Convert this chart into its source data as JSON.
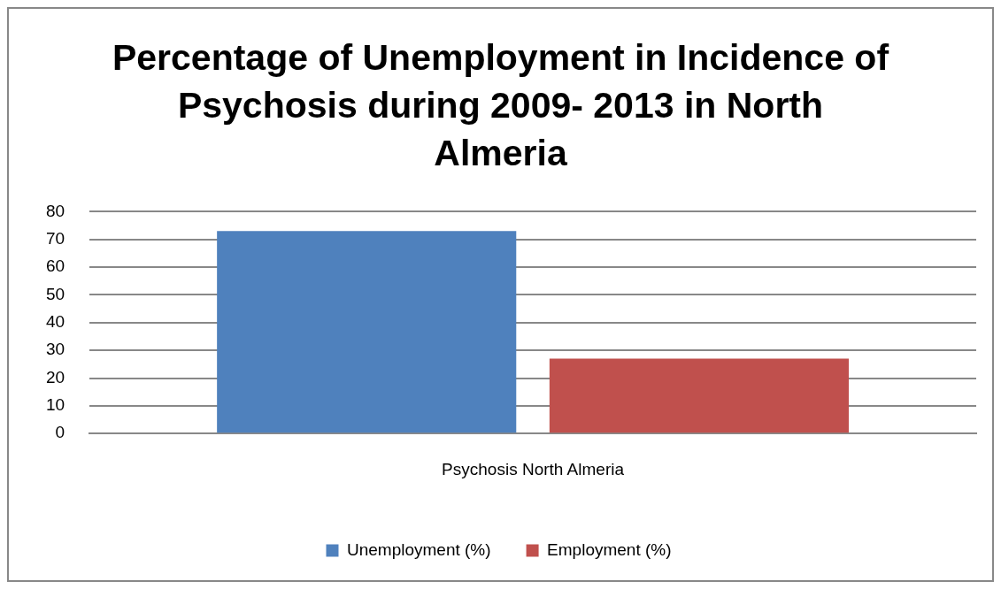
{
  "chart_data": {
    "type": "bar",
    "title": "Percentage of Unemployment in Incidence of Psychosis during 2009- 2013 in North Almeria",
    "categories": [
      "Psychosis North Almeria"
    ],
    "series": [
      {
        "name": "Unemployment (%)",
        "color": "#4f81bd",
        "values": [
          73
        ]
      },
      {
        "name": "Employment (%)",
        "color": "#c0504d",
        "values": [
          27
        ]
      }
    ],
    "ylim": [
      0,
      80
    ],
    "yticks": [
      0,
      10,
      20,
      30,
      40,
      50,
      60,
      70,
      80
    ],
    "grid": "y",
    "legend": "bottom"
  }
}
